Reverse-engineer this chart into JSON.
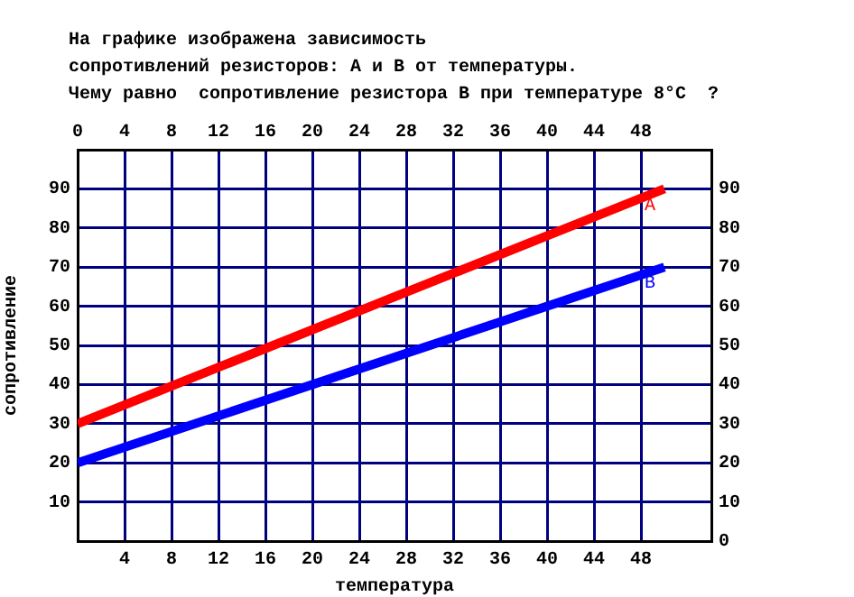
{
  "chart_data": {
    "type": "line",
    "title": "На графике изображена зависимость\nсопротивлений резисторов: А и В от температуры.\nЧему равно  сопротивление резистора В при температуре 8°С  ?",
    "xlabel": "температура",
    "ylabel": "сопротивление",
    "x": [
      0,
      50
    ],
    "series": [
      {
        "name": "А",
        "color": "#ff0000",
        "values": [
          30,
          90
        ]
      },
      {
        "name": "В",
        "color": "#0000ff",
        "values": [
          20,
          70
        ]
      }
    ],
    "xlim": [
      0,
      54
    ],
    "xticks": [
      {
        "value": 0,
        "label": null
      },
      4,
      8,
      12,
      16,
      20,
      24,
      28,
      32,
      36,
      40,
      44,
      48
    ],
    "x2lim": [
      0,
      54
    ],
    "x2ticks": [
      0,
      4,
      8,
      12,
      16,
      20,
      24,
      28,
      32,
      36,
      40,
      44,
      48
    ],
    "ylim": [
      0,
      100
    ],
    "yticks": [
      {
        "value": 0,
        "label": null
      },
      10,
      20,
      30,
      40,
      50,
      60,
      70,
      80,
      90
    ],
    "y2lim": [
      0,
      100
    ],
    "y2ticks": [
      0,
      10,
      20,
      30,
      40,
      50,
      60,
      70,
      80,
      90
    ],
    "grid": true,
    "legend": false,
    "marker": "none",
    "line_style": "solid"
  }
}
